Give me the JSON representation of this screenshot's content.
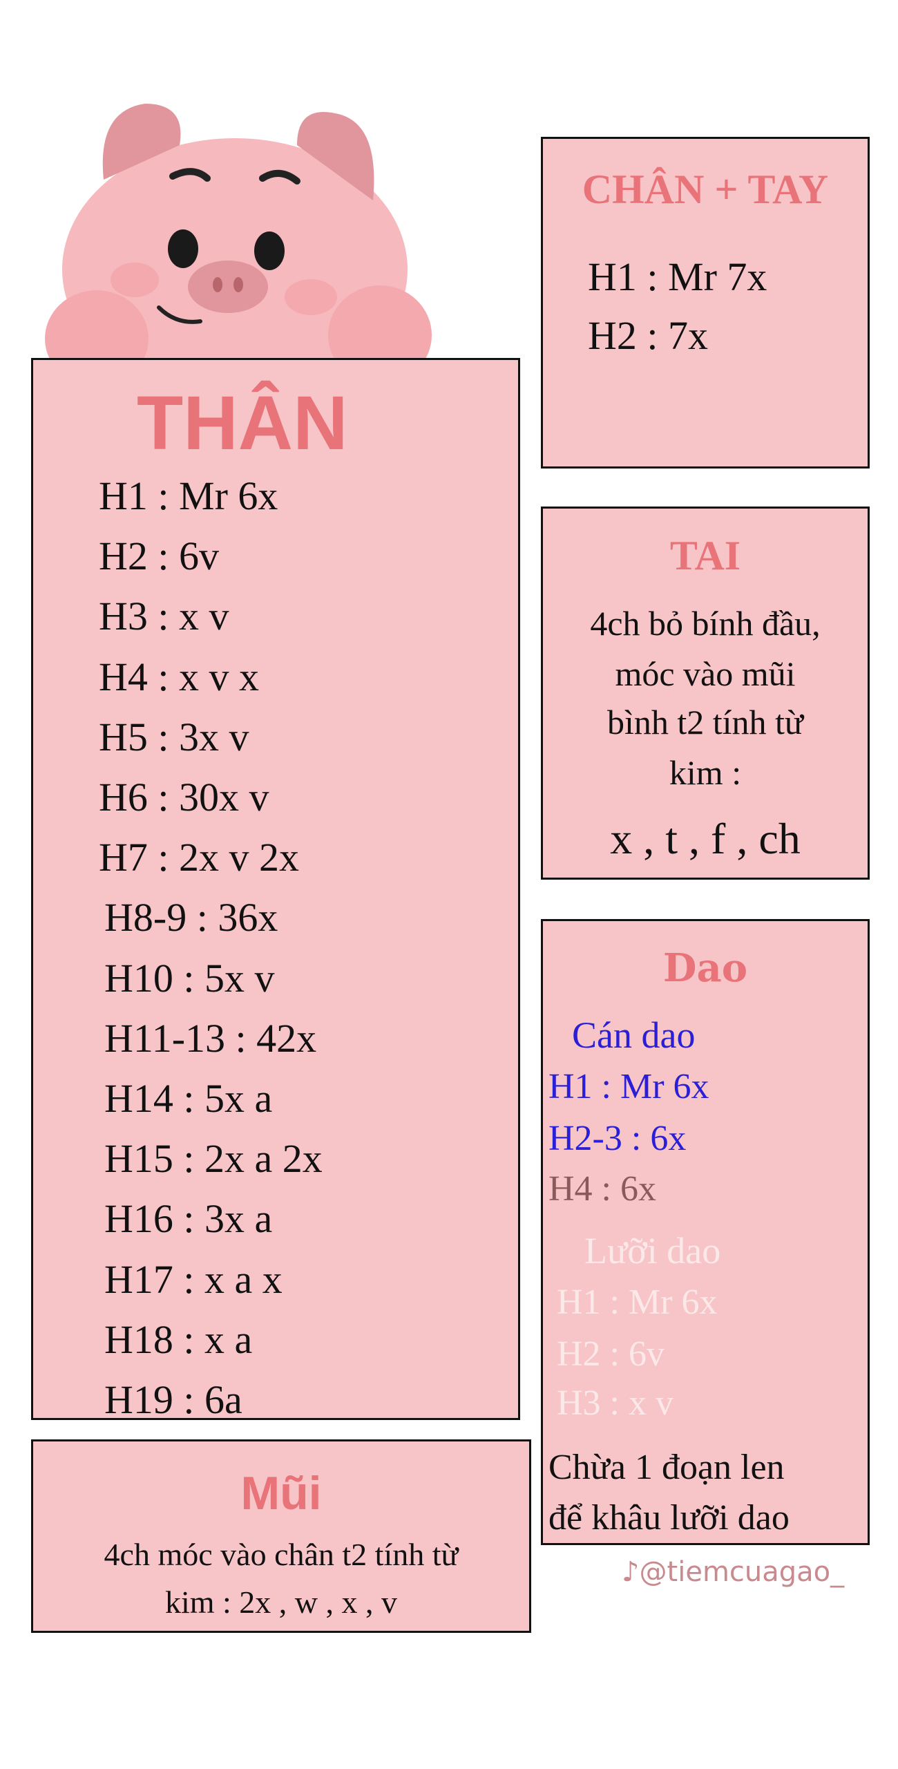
{
  "colors": {
    "box_fill": "#f7c5c8",
    "title": "#e8747a",
    "blue_text": "#2a1fd6",
    "brown_text": "#8a5a5a",
    "faded_text": "#fbe9ea",
    "pig_face": "#f6b9bd",
    "pig_ear": "#e0969c"
  },
  "than": {
    "title": "THÂN",
    "rows": [
      "H1 : Mr 6x",
      "H2 : 6v",
      "H3 : x v",
      "H4 : x v x",
      "H5 : 3x v",
      "H6 : 30x  v",
      "H7 : 2x v 2x",
      "H8-9 : 36x",
      "H10 : 5x v",
      "H11-13 : 42x",
      "H14 : 5x a",
      "H15 : 2x a 2x",
      "H16 : 3x a",
      "H17 : x a x",
      "H18 : x a",
      "H19 : 6a"
    ]
  },
  "chan_tay": {
    "title": "CHÂN + TAY",
    "rows": [
      "H1 : Mr 7x",
      "H2 : 7x"
    ]
  },
  "tai": {
    "title": "TAI",
    "lines": [
      "4ch bỏ bính đầu,",
      "móc vào mũi",
      "bình t2 tính từ",
      "kim :"
    ],
    "stitches": "x , t , f , ch"
  },
  "dao": {
    "title": "Dao",
    "can_dao": {
      "title": "Cán dao",
      "rows": [
        "H1 : Mr 6x",
        "H2-3 : 6x",
        "H4 : 6x"
      ]
    },
    "luoi_dao": {
      "title": "Lưỡi dao",
      "rows": [
        "H1 : Mr 6x",
        "H2 : 6v",
        "H3 : x v"
      ]
    },
    "note": [
      "Chừa 1 đoạn len",
      "để khâu lưỡi dao"
    ]
  },
  "mui": {
    "title": "Mũi",
    "lines": [
      "4ch móc vào chân t2  tính từ",
      "kim : 2x , w , x  , v"
    ]
  },
  "watermark": {
    "icon": "tiktok-icon",
    "handle": "@tiemcuagao_"
  }
}
